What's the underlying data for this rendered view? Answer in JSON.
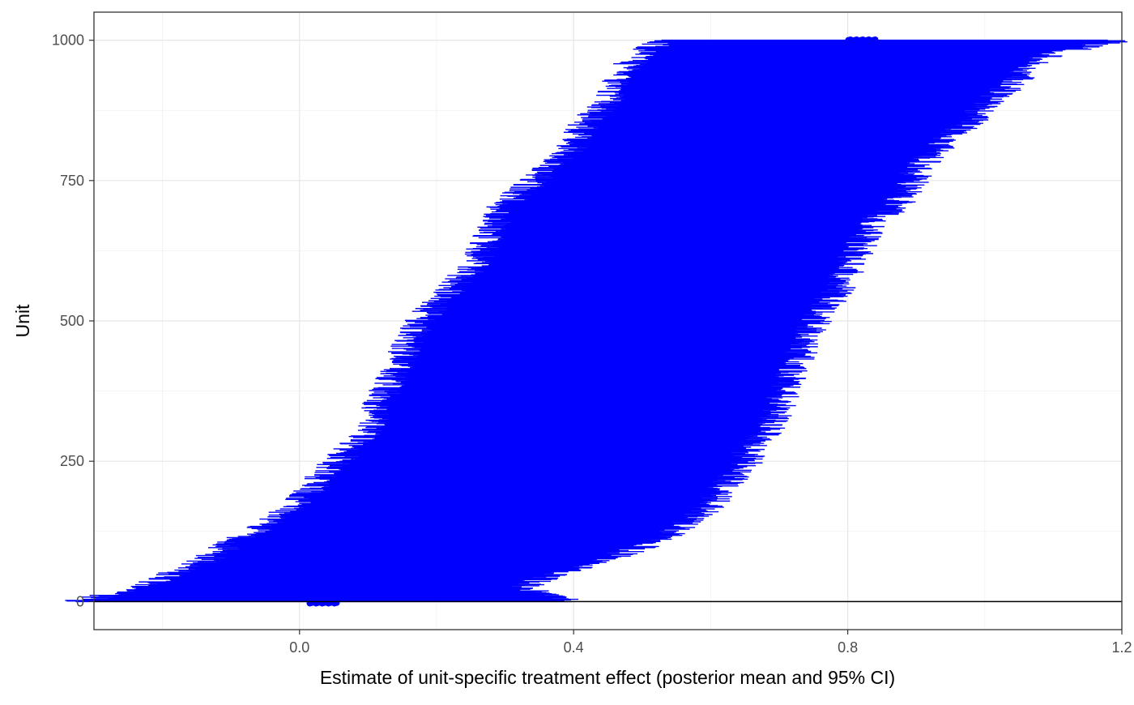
{
  "chart_data": {
    "type": "scatter",
    "title": "",
    "xlabel": "Estimate of unit-specific treatment effect (posterior mean and 95% CI)",
    "ylabel": "Unit",
    "xlim": [
      -0.3,
      1.2
    ],
    "ylim": [
      -50,
      1050
    ],
    "x_ticks": [
      {
        "value": 0.0,
        "label": "0.0"
      },
      {
        "value": 0.4,
        "label": "0.4"
      },
      {
        "value": 0.8,
        "label": "0.8"
      },
      {
        "value": 1.2,
        "label": "1.2"
      }
    ],
    "y_ticks": [
      {
        "value": 0,
        "label": "0"
      },
      {
        "value": 250,
        "label": "250"
      },
      {
        "value": 500,
        "label": "500"
      },
      {
        "value": 750,
        "label": "750"
      },
      {
        "value": 1000,
        "label": "1000"
      }
    ],
    "x_minor_grid": [
      -0.2,
      0.2,
      0.6,
      1.0
    ],
    "y_minor_grid": [
      125,
      375,
      625,
      875
    ],
    "grid": true,
    "reference_line_y": 0,
    "series": [
      {
        "kind": "interval",
        "color": "#0000ff",
        "point_range": [
          0.015,
          0.84
        ],
        "columns": [
          "unit",
          "lower",
          "mean",
          "upper"
        ],
        "data": [
          [
            0,
            -0.3,
            0.02,
            0.37
          ],
          [
            25,
            -0.21,
            0.03,
            0.3
          ],
          [
            50,
            -0.16,
            0.05,
            0.35
          ],
          [
            75,
            -0.11,
            0.07,
            0.42
          ],
          [
            100,
            -0.08,
            0.09,
            0.48
          ],
          [
            125,
            -0.04,
            0.12,
            0.52
          ],
          [
            150,
            -0.01,
            0.14,
            0.55
          ],
          [
            175,
            0.02,
            0.16,
            0.58
          ],
          [
            200,
            0.04,
            0.18,
            0.59
          ],
          [
            225,
            0.06,
            0.2,
            0.61
          ],
          [
            250,
            0.08,
            0.22,
            0.63
          ],
          [
            275,
            0.1,
            0.24,
            0.63
          ],
          [
            300,
            0.12,
            0.26,
            0.66
          ],
          [
            325,
            0.13,
            0.28,
            0.67
          ],
          [
            350,
            0.14,
            0.3,
            0.68
          ],
          [
            375,
            0.15,
            0.31,
            0.68
          ],
          [
            400,
            0.16,
            0.33,
            0.69
          ],
          [
            425,
            0.17,
            0.35,
            0.7
          ],
          [
            450,
            0.18,
            0.37,
            0.71
          ],
          [
            475,
            0.19,
            0.39,
            0.72
          ],
          [
            500,
            0.2,
            0.41,
            0.73
          ],
          [
            525,
            0.22,
            0.43,
            0.74
          ],
          [
            550,
            0.24,
            0.45,
            0.76
          ],
          [
            575,
            0.26,
            0.47,
            0.77
          ],
          [
            600,
            0.28,
            0.5,
            0.78
          ],
          [
            625,
            0.29,
            0.52,
            0.79
          ],
          [
            650,
            0.3,
            0.54,
            0.8
          ],
          [
            675,
            0.31,
            0.56,
            0.81
          ],
          [
            700,
            0.32,
            0.58,
            0.84
          ],
          [
            725,
            0.34,
            0.6,
            0.86
          ],
          [
            750,
            0.37,
            0.62,
            0.87
          ],
          [
            775,
            0.39,
            0.64,
            0.88
          ],
          [
            800,
            0.42,
            0.66,
            0.9
          ],
          [
            825,
            0.43,
            0.68,
            0.92
          ],
          [
            850,
            0.44,
            0.7,
            0.95
          ],
          [
            875,
            0.46,
            0.72,
            0.97
          ],
          [
            900,
            0.48,
            0.74,
            0.99
          ],
          [
            925,
            0.49,
            0.76,
            1.02
          ],
          [
            950,
            0.5,
            0.78,
            1.04
          ],
          [
            975,
            0.52,
            0.81,
            1.07
          ],
          [
            1000,
            0.56,
            0.84,
            1.17
          ]
        ]
      }
    ]
  }
}
